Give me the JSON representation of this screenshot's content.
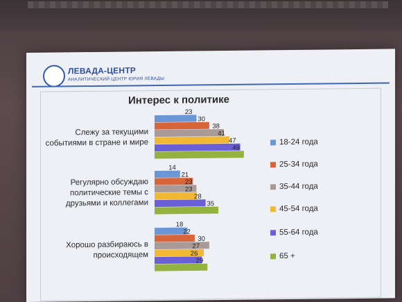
{
  "brand": {
    "name": "ЛЕВАДА-ЦЕНТР",
    "subtitle": "АНАЛИТИЧЕСКИЙ ЦЕНТР ЮРИЯ ЛЕВАДЫ"
  },
  "colors": [
    "#6b97d6",
    "#d8643a",
    "#a99a97",
    "#f2b833",
    "#6a5fd6",
    "#93b23f"
  ],
  "chart_data": {
    "type": "bar",
    "orientation": "horizontal",
    "title": "Интерес к политике",
    "categories": [
      [
        "Слежу за текущими",
        "событиями в стране и мире"
      ],
      [
        "Регулярно обсуждаю",
        "политические темы с",
        "друзьями и коллегами"
      ],
      [
        "Хорошо разбираюсь в",
        "происходящем"
      ]
    ],
    "series": [
      {
        "name": "18-24 года",
        "values": [
          23,
          14,
          18
        ]
      },
      {
        "name": "25-34 года",
        "values": [
          30,
          21,
          22
        ]
      },
      {
        "name": "35-44 года",
        "values": [
          38,
          23,
          30
        ]
      },
      {
        "name": "45-54 года",
        "values": [
          41,
          23,
          27
        ]
      },
      {
        "name": "55-64 года",
        "values": [
          47,
          28,
          26
        ]
      },
      {
        "name": "65 +",
        "values": [
          49,
          35,
          29
        ]
      }
    ],
    "legend_position": "right",
    "grid": false
  }
}
